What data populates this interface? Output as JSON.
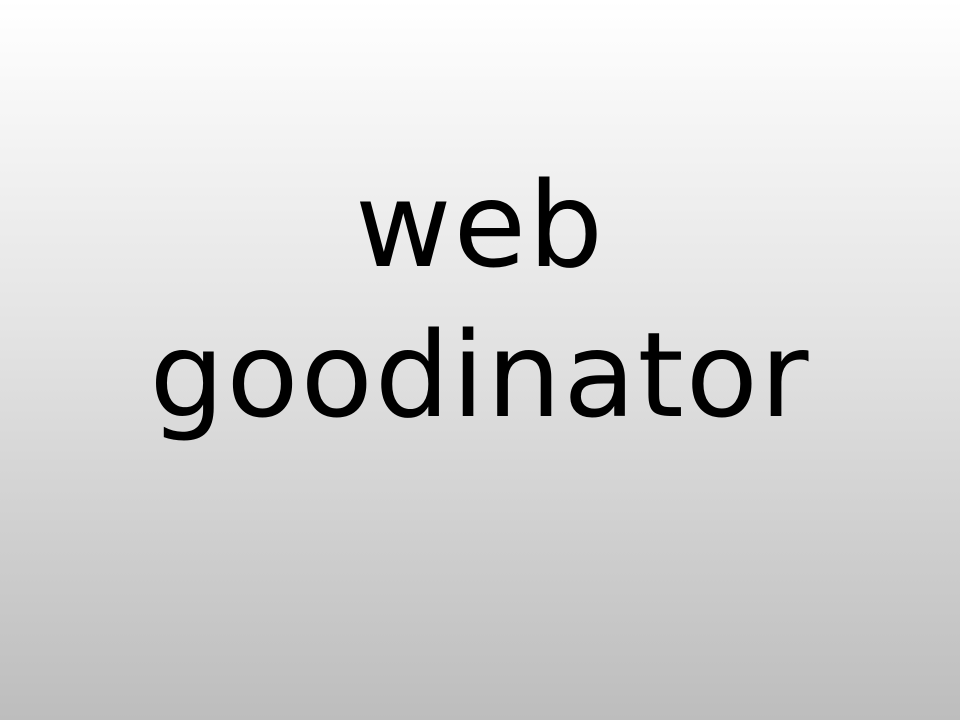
{
  "slide": {
    "line1": "web",
    "line2": "goodinator"
  },
  "colors": {
    "text": "#000000",
    "background_top": "#ffffff",
    "background_bottom": "#bdbdbd"
  }
}
